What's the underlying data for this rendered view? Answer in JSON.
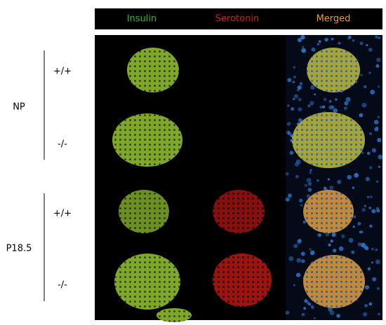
{
  "header": {
    "columns": [
      "Insulin",
      "Serotonin",
      "Merged"
    ]
  },
  "groups": [
    {
      "label": "NP",
      "genotypes": [
        "+/+",
        "-/-"
      ]
    },
    {
      "label": "P18.5",
      "genotypes": [
        "+/+",
        "-/-"
      ]
    }
  ]
}
